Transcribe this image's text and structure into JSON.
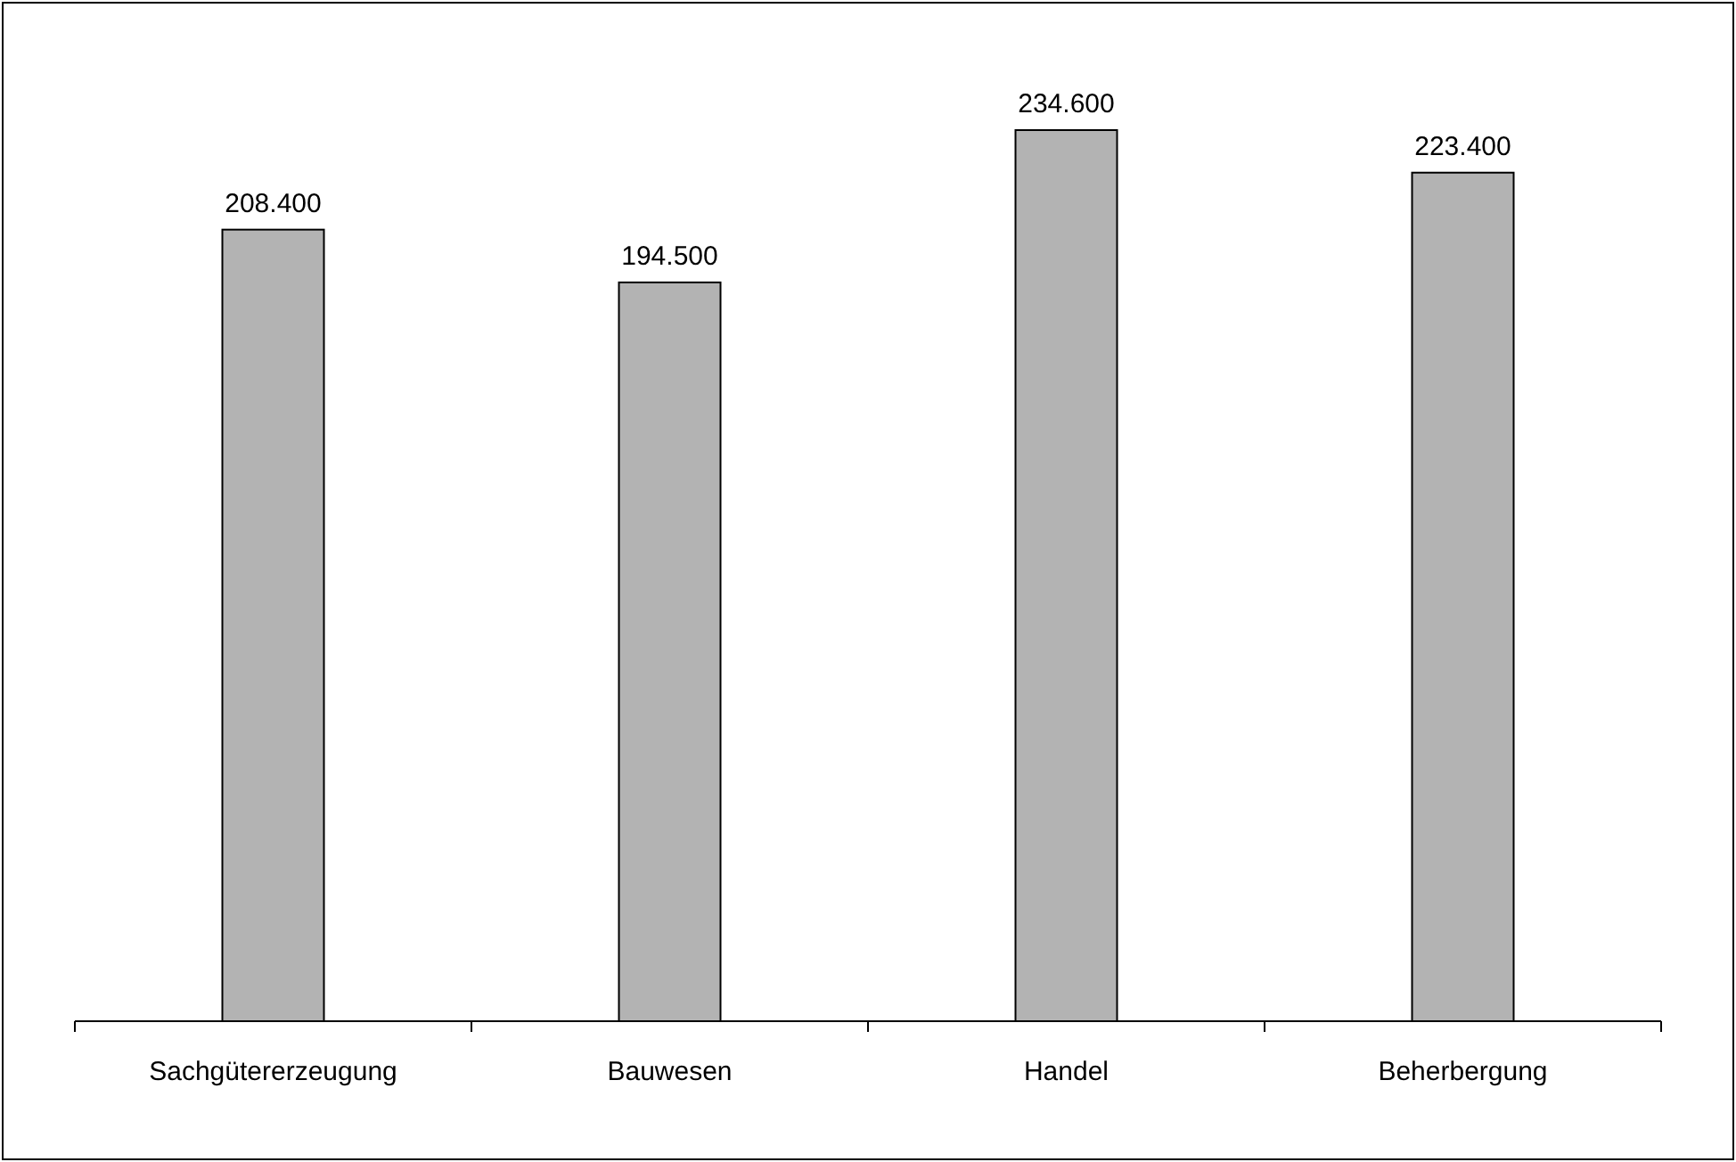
{
  "chart_data": {
    "type": "bar",
    "categories": [
      "Sachgütererzeugung",
      "Bauwesen",
      "Handel",
      "Beherbergung"
    ],
    "values": [
      208400,
      194500,
      234600,
      223400
    ],
    "value_labels": [
      "208.400",
      "194.500",
      "234.600",
      "223.400"
    ],
    "color": "#b3b3b3",
    "tick_labels": "x"
  }
}
